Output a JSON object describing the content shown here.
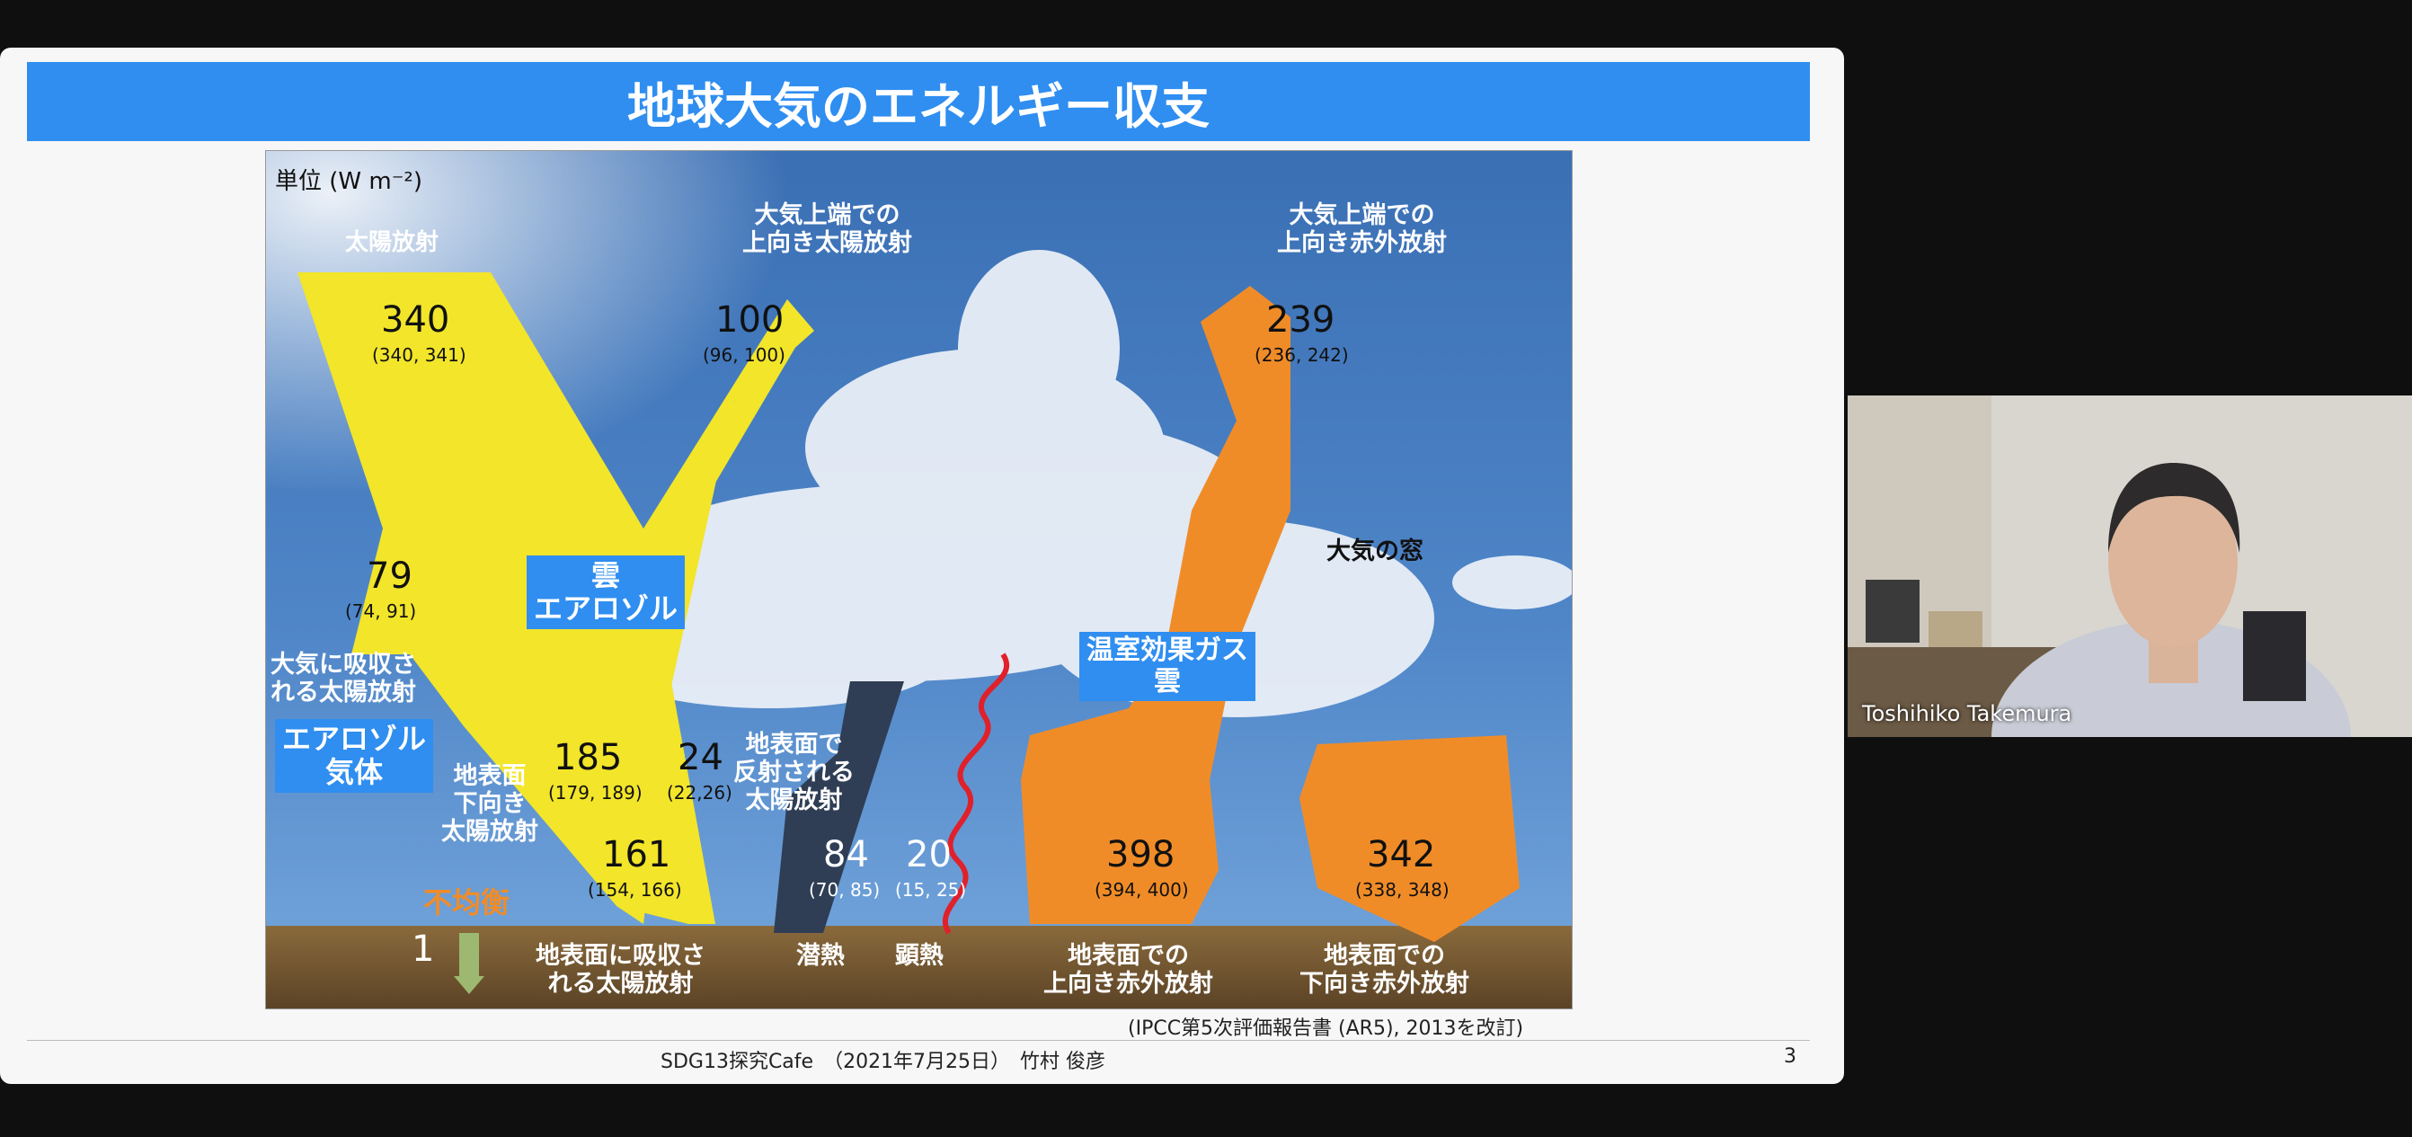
{
  "slide": {
    "title": "地球大気のエネルギー収支",
    "diagram": {
      "unit_label": "単位 (W m⁻²)",
      "labels": {
        "solar_radiation": "太陽放射",
        "toa_up_solar": "大気上端での\n上向き太陽放射",
        "toa_up_ir": "大気上端での\n上向き赤外放射",
        "atm_window": "大気の窓",
        "atm_absorbed_solar": "大気に吸収さ\nれる太陽放射",
        "surface_down_solar": "地表面\n下向き\n太陽放射",
        "surface_reflected_solar": "地表面で\n反射される\n太陽放射",
        "imbalance": "不均衡",
        "surface_absorbed_solar": "地表面に吸収さ\nれる太陽放射",
        "latent_heat": "潜熱",
        "sensible_heat": "顕熱",
        "surface_up_ir": "地表面での\n上向き赤外放射",
        "surface_down_ir": "地表面での\n下向き赤外放射"
      },
      "boxes": {
        "cloud_aerosol": "雲\nエアロゾル",
        "aerosol_gas": "エアロゾル\n気体",
        "ghg_cloud": "温室効果ガス\n雲"
      },
      "values": [
        {
          "id": "solar_in",
          "value": "340",
          "range": "(340, 341)"
        },
        {
          "id": "solar_out",
          "value": "100",
          "range": "(96, 100)"
        },
        {
          "id": "ir_out",
          "value": "239",
          "range": "(236, 242)"
        },
        {
          "id": "atm_abs",
          "value": "79",
          "range": "(74, 91)"
        },
        {
          "id": "surf_down",
          "value": "185",
          "range": "(179, 189)"
        },
        {
          "id": "surf_refl",
          "value": "24",
          "range": "(22,26)"
        },
        {
          "id": "surf_abs",
          "value": "161",
          "range": "(154, 166)"
        },
        {
          "id": "latent",
          "value": "84",
          "range": "(70, 85)"
        },
        {
          "id": "sensible",
          "value": "20",
          "range": "(15, 25)"
        },
        {
          "id": "ir_up",
          "value": "398",
          "range": "(394, 400)"
        },
        {
          "id": "ir_down",
          "value": "342",
          "range": "(338, 348)"
        },
        {
          "id": "imbalance",
          "value": "1",
          "range": ""
        }
      ]
    },
    "citation": "(IPCC第5次評価報告書 (AR5), 2013を改訂)",
    "footer": {
      "event": "SDG13探究Cafe　（2021年7月25日）　竹村 俊彦",
      "page_number": "3"
    }
  },
  "participant": {
    "name": "Toshihiko Takemura"
  },
  "colors": {
    "title_bar": "#2f8ef0",
    "solar_arrow": "#f2e52a",
    "ir_arrow": "#f08c28",
    "imbalance_text": "#f08c28"
  }
}
